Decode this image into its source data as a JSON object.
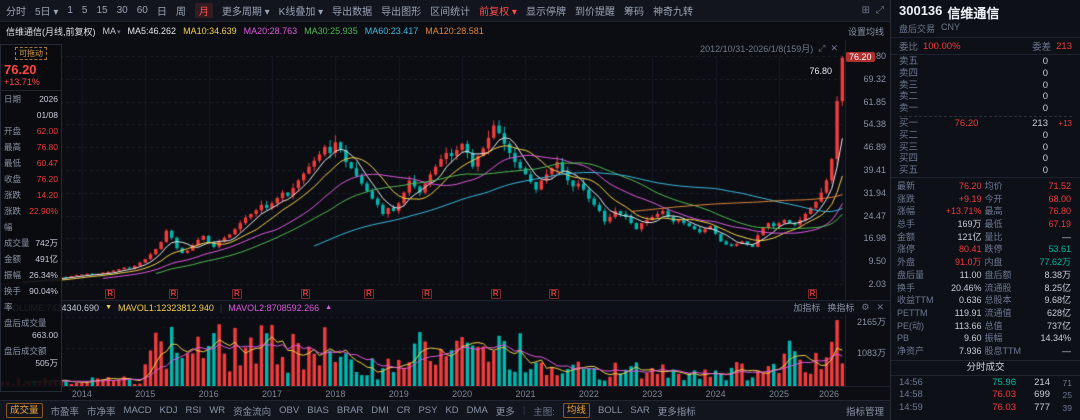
{
  "icons": {
    "expand": "⤢",
    "close": "✕",
    "gear": "⚙",
    "panel": "⊞",
    "more": "⋮",
    "arrow_down": "▼",
    "arrow_up": "▲"
  },
  "toolbar": {
    "items": [
      {
        "label": "分时"
      },
      {
        "label": "5日",
        "caret": true
      },
      {
        "label": "1"
      },
      {
        "label": "5"
      },
      {
        "label": "15"
      },
      {
        "label": "30"
      },
      {
        "label": "60"
      },
      {
        "label": "日"
      },
      {
        "label": "周"
      },
      {
        "label": "月",
        "active": true
      },
      {
        "label": "更多周期",
        "caret": true
      },
      {
        "label": "K线叠加",
        "caret": true
      },
      {
        "label": "导出数据"
      },
      {
        "label": "导出图形"
      },
      {
        "label": "区间统计"
      },
      {
        "label": "前复权",
        "caret": true,
        "red": true
      },
      {
        "label": "显示停牌"
      },
      {
        "label": "到价提醒"
      },
      {
        "label": "筹码"
      },
      {
        "label": "神奇九转"
      }
    ]
  },
  "chart_header": {
    "instrument": "信维通信(月线,前复权)",
    "ma_toggle": "MA",
    "settings": "设置均线",
    "legend": [
      {
        "label": "MA5:46.262",
        "color": "#e6e9f0"
      },
      {
        "label": "MA10:34.639",
        "color": "#f3d04e"
      },
      {
        "label": "MA20:28.763",
        "color": "#e05ae0"
      },
      {
        "label": "MA30:25.935",
        "color": "#54b954"
      },
      {
        "label": "MA60:23.417",
        "color": "#3fb9e0"
      },
      {
        "label": "MA120:28.581",
        "color": "#e0863f"
      }
    ]
  },
  "chart": {
    "range_label": "2012/10/31-2026/1/8(159月)",
    "peak_label": "76.80",
    "price_tag": "76.20",
    "y_axis": [
      "76.80",
      "69.32",
      "61.85",
      "54.38",
      "46.89",
      "39.41",
      "31.94",
      "24.47",
      "16.98",
      "9.50",
      "2.03"
    ],
    "x_axis": [
      {
        "label": "2014",
        "idx": 15
      },
      {
        "label": "2015",
        "idx": 27
      },
      {
        "label": "2016",
        "idx": 39
      },
      {
        "label": "2017",
        "idx": 51
      },
      {
        "label": "2018",
        "idx": 63
      },
      {
        "label": "2019",
        "idx": 75
      },
      {
        "label": "2020",
        "idx": 87
      },
      {
        "label": "2021",
        "idx": 99
      },
      {
        "label": "2022",
        "idx": 111
      },
      {
        "label": "2023",
        "idx": 123
      },
      {
        "label": "2024",
        "idx": 135
      },
      {
        "label": "2025",
        "idx": 147
      },
      {
        "label": "2026",
        "idx": 159
      }
    ],
    "vol_axis": [
      "2165万",
      "1083万"
    ],
    "r_mark_label": "R"
  },
  "chart_data": {
    "type": "candlestick",
    "symbol": "300136 信维通信",
    "period": "月K线 前复权",
    "date_range": "2012/10/31 - 2026/1/8",
    "months": 159,
    "ylim": [
      2.03,
      76.8
    ],
    "closes": [
      2.1,
      2.3,
      2.5,
      2.7,
      2.9,
      3.1,
      3.0,
      3.3,
      3.6,
      3.8,
      4.0,
      4.3,
      4.1,
      4.6,
      4.9,
      5.1,
      5.4,
      5.0,
      5.3,
      5.7,
      6.0,
      6.4,
      6.9,
      7.4,
      7.1,
      8.0,
      9.0,
      10.2,
      11.8,
      13.5,
      15.8,
      19.5,
      17.2,
      13.8,
      12.2,
      13.0,
      14.8,
      16.5,
      17.8,
      15.5,
      14.2,
      16.0,
      17.2,
      18.3,
      20.0,
      22.0,
      23.8,
      25.0,
      26.2,
      28.0,
      27.0,
      28.5,
      30.2,
      32.0,
      31.0,
      33.5,
      36.0,
      38.2,
      40.5,
      42.5,
      44.5,
      47.0,
      45.0,
      48.5,
      46.0,
      42.0,
      40.0,
      37.5,
      35.0,
      32.5,
      30.0,
      28.0,
      25.0,
      27.0,
      26.0,
      28.5,
      32.0,
      36.0,
      34.0,
      32.0,
      35.0,
      38.0,
      40.5,
      43.0,
      45.0,
      44.0,
      46.0,
      48.0,
      45.0,
      40.5,
      44.0,
      46.5,
      50.0,
      54.0,
      51.5,
      48.0,
      45.0,
      42.0,
      40.0,
      38.0,
      35.5,
      33.0,
      36.0,
      38.0,
      40.0,
      42.0,
      39.0,
      36.0,
      34.0,
      35.0,
      33.0,
      30.0,
      28.0,
      26.0,
      22.5,
      24.0,
      26.0,
      25.0,
      24.0,
      22.0,
      20.0,
      22.0,
      23.0,
      24.0,
      25.0,
      26.0,
      24.0,
      22.5,
      23.0,
      22.0,
      21.0,
      20.0,
      19.0,
      20.0,
      21.0,
      18.5,
      16.0,
      15.0,
      14.5,
      15.2,
      16.0,
      15.0,
      14.2,
      18.0,
      20.5,
      22.0,
      21.0,
      22.0,
      23.0,
      22.0,
      21.5,
      23.0,
      25.0,
      27.0,
      29.0,
      32.0,
      36.0,
      43.0,
      62.0,
      76.2
    ],
    "last_candle": {
      "open": 62.0,
      "high": 76.8,
      "low": 60.47,
      "close": 76.2
    },
    "r_marks": [
      20,
      32,
      44,
      57,
      69,
      80,
      93,
      104,
      153
    ],
    "ma_periods": [
      5,
      10,
      20,
      30,
      60,
      120
    ],
    "ma_colors": [
      "#e6e9f0",
      "#f3d04e",
      "#e05ae0",
      "#54b954",
      "#3fb9e0",
      "#e0863f"
    ],
    "up_color": "#f23c3c",
    "down_color": "#00b8b0",
    "volume_max": 2165,
    "volume_latest": 742,
    "mavol_colors": [
      "#f3d04e",
      "#e05ae0"
    ]
  },
  "left_panel": {
    "drag_label": "可拖动",
    "price": "76.20",
    "change_pct": "+13.71%",
    "rows": [
      {
        "label": "日期",
        "value": "2026",
        "c": "w"
      },
      {
        "label": "",
        "value": "01/08",
        "c": "w"
      },
      {
        "label": "开盘",
        "value": "62.00",
        "c": "r"
      },
      {
        "label": "最高",
        "value": "76.80",
        "c": "r"
      },
      {
        "label": "最低",
        "value": "60.47",
        "c": "r"
      },
      {
        "label": "收盘",
        "value": "76.20",
        "c": "r"
      },
      {
        "label": "涨跌",
        "value": "14.20",
        "c": "r"
      },
      {
        "label": "涨跌幅",
        "value": "22.90%",
        "c": "r"
      },
      {
        "label": "成交量",
        "value": "742万",
        "c": "w"
      },
      {
        "label": "金额",
        "value": "491亿",
        "c": "w"
      },
      {
        "label": "振幅",
        "value": "26.34%",
        "c": "w"
      },
      {
        "label": "换手率",
        "value": "90.04%",
        "c": "w"
      },
      {
        "label": "盘后成交量",
        "value": "663.00",
        "c": "w",
        "stack": true
      },
      {
        "label": "盘后成交额",
        "value": "505万",
        "c": "w",
        "stack": true
      }
    ]
  },
  "vol_header": {
    "volume": "VOLUME:7424340.690",
    "mavol1": "MAVOL1:12323812.940",
    "mavol2": "MAVOL2:8708592.266",
    "add_label": "加指标",
    "swap_label": "换指标"
  },
  "bottom_bar": {
    "indicators": [
      "成交量",
      "市盈率",
      "市净率",
      "MACD",
      "KDJ",
      "RSI",
      "WR",
      "资金流向",
      "OBV",
      "BIAS",
      "BRAR",
      "DMI",
      "CR",
      "PSY",
      "KD",
      "DMA",
      "更多"
    ],
    "active": "成交量",
    "main_label": "主图:",
    "main_items": [
      "均线",
      "BOLL",
      "SAR",
      "更多指标"
    ],
    "main_active": "均线",
    "manage_label": "指标管理"
  },
  "side": {
    "code": "300136",
    "name": "信维通信",
    "session": "盘后交易",
    "currency": "CNY",
    "weibi_label": "委比",
    "weibi": "100.00%",
    "weicha_label": "委差",
    "weicha": "213",
    "asks": [
      {
        "label": "卖五",
        "price": "",
        "vol": "0"
      },
      {
        "label": "卖四",
        "price": "",
        "vol": "0"
      },
      {
        "label": "卖三",
        "price": "",
        "vol": "0"
      },
      {
        "label": "卖二",
        "price": "",
        "vol": "0"
      },
      {
        "label": "卖一",
        "price": "",
        "vol": "0"
      }
    ],
    "bids": [
      {
        "label": "买一",
        "price": "76.20",
        "vol": "213",
        "extra": "+13"
      },
      {
        "label": "买二",
        "price": "",
        "vol": "0",
        "extra": ""
      },
      {
        "label": "买三",
        "price": "",
        "vol": "0",
        "extra": ""
      },
      {
        "label": "买四",
        "price": "",
        "vol": "0",
        "extra": ""
      },
      {
        "label": "买五",
        "price": "",
        "vol": "0",
        "extra": ""
      }
    ],
    "stats": [
      {
        "l": "最新",
        "v": "76.20",
        "vc": "r",
        "l2": "均价",
        "v2": "71.52",
        "v2c": "r"
      },
      {
        "l": "涨跌",
        "v": "+9.19",
        "vc": "r",
        "l2": "今开",
        "v2": "68.00",
        "v2c": "r"
      },
      {
        "l": "涨幅",
        "v": "+13.71%",
        "vc": "r",
        "l2": "最高",
        "v2": "76.80",
        "v2c": "r"
      },
      {
        "l": "总手",
        "v": "169万",
        "vc": "w",
        "l2": "最低",
        "v2": "67.19",
        "v2c": "r"
      },
      {
        "l": "金额",
        "v": "121亿",
        "vc": "w",
        "l2": "量比",
        "v2": "—",
        "v2c": "w"
      },
      {
        "l": "涨停",
        "v": "80.41",
        "vc": "r",
        "l2": "跌停",
        "v2": "53.61",
        "v2c": "g"
      },
      {
        "l": "外盘",
        "v": "91.0万",
        "vc": "r",
        "l2": "内盘",
        "v2": "77.62万",
        "v2c": "g"
      },
      {
        "l": "盘后量",
        "v": "11.00",
        "vc": "w",
        "l2": "盘后额",
        "v2": "8.38万",
        "v2c": "w"
      },
      {
        "l": "换手",
        "v": "20.46%",
        "vc": "w",
        "l2": "流通股",
        "v2": "8.25亿",
        "v2c": "w"
      },
      {
        "l": "收益TTM",
        "v": "0.636",
        "vc": "w",
        "l2": "总股本",
        "v2": "9.68亿",
        "v2c": "w"
      },
      {
        "l": "PETTM",
        "v": "119.91",
        "vc": "w",
        "l2": "流通值",
        "v2": "628亿",
        "v2c": "w"
      },
      {
        "l": "PE(动)",
        "v": "113.66",
        "vc": "w",
        "l2": "总值",
        "v2": "737亿",
        "v2c": "w"
      },
      {
        "l": "PB",
        "v": "9.60",
        "vc": "w",
        "l2": "振幅",
        "v2": "14.34%",
        "v2c": "w"
      },
      {
        "l": "净资产",
        "v": "7.936",
        "vc": "w",
        "l2": "股息TTM",
        "v2": "—",
        "v2c": "w"
      }
    ],
    "ticks_title": "分时成交",
    "ticks": [
      {
        "t": "14:56",
        "p": "75.96",
        "pc": "g",
        "v": "214",
        "n": "71"
      },
      {
        "t": "14:58",
        "p": "76.03",
        "pc": "r",
        "v": "699",
        "n": "25"
      },
      {
        "t": "14:59",
        "p": "76.03",
        "pc": "r",
        "v": "777",
        "n": "39"
      }
    ]
  }
}
